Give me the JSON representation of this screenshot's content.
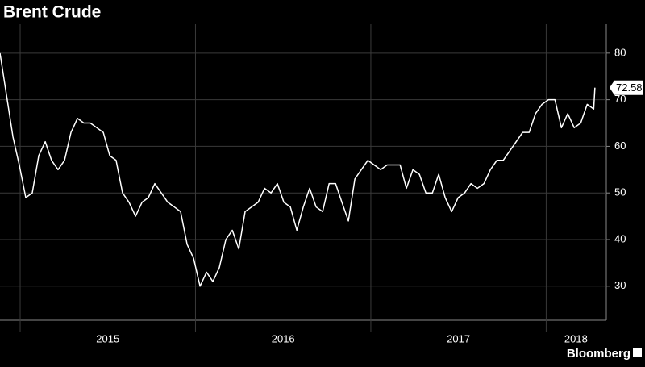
{
  "chart_data": {
    "type": "line",
    "title": "Brent Crude",
    "source": "Bloomberg",
    "xlim": [
      2014.885,
      2018.343
    ],
    "ylim": [
      22.7,
      86.2
    ],
    "yticks": [
      30,
      40,
      50,
      60,
      70,
      80
    ],
    "xticks": [
      {
        "value": 2015.5,
        "label": "2015"
      },
      {
        "value": 2016.5,
        "label": "2016"
      },
      {
        "value": 2017.5,
        "label": "2017"
      },
      {
        "value": 2018.17,
        "label": "2018"
      }
    ],
    "xdividers": [
      2015,
      2016,
      2017,
      2018
    ],
    "grid": true,
    "series": [
      {
        "name": "Brent Crude",
        "color": "#ffffff",
        "x": [
          2014.885,
          2014.922,
          2014.959,
          2014.995,
          2015.032,
          2015.069,
          2015.106,
          2015.143,
          2015.179,
          2015.216,
          2015.253,
          2015.29,
          2015.327,
          2015.363,
          2015.4,
          2015.437,
          2015.474,
          2015.511,
          2015.547,
          2015.584,
          2015.621,
          2015.658,
          2015.695,
          2015.731,
          2015.768,
          2015.805,
          2015.842,
          2015.879,
          2015.915,
          2015.952,
          2015.989,
          2016.026,
          2016.063,
          2016.099,
          2016.136,
          2016.173,
          2016.21,
          2016.247,
          2016.283,
          2016.32,
          2016.357,
          2016.394,
          2016.431,
          2016.467,
          2016.504,
          2016.541,
          2016.578,
          2016.615,
          2016.651,
          2016.688,
          2016.725,
          2016.762,
          2016.799,
          2016.835,
          2016.872,
          2016.909,
          2016.946,
          2016.983,
          2017.019,
          2017.056,
          2017.093,
          2017.13,
          2017.167,
          2017.203,
          2017.24,
          2017.277,
          2017.314,
          2017.351,
          2017.387,
          2017.424,
          2017.461,
          2017.498,
          2017.535,
          2017.571,
          2017.608,
          2017.645,
          2017.682,
          2017.719,
          2017.755,
          2017.792,
          2017.829,
          2017.866,
          2017.903,
          2017.939,
          2017.976,
          2018.013,
          2018.05,
          2018.087,
          2018.123,
          2018.16,
          2018.197,
          2018.234,
          2018.271,
          2018.278
        ],
        "values": [
          80,
          71,
          62,
          56,
          49,
          50,
          58,
          61,
          57,
          55,
          57,
          63,
          66,
          65,
          65,
          64,
          63,
          58,
          57,
          50,
          48,
          45,
          48,
          49,
          52,
          50,
          48,
          47,
          46,
          39,
          36,
          30,
          33,
          31,
          34,
          40,
          42,
          38,
          46,
          47,
          48,
          51,
          50,
          52,
          48,
          47,
          42,
          47,
          51,
          47,
          46,
          52,
          52,
          48,
          44,
          53,
          55,
          57,
          56,
          55,
          56,
          56,
          56,
          51,
          55,
          54,
          50,
          50,
          54,
          49,
          46,
          49,
          50,
          52,
          51,
          52,
          55,
          57,
          57,
          59,
          61,
          63,
          63,
          67,
          69,
          70,
          70,
          64,
          67,
          64,
          65,
          69,
          68,
          72.58
        ]
      }
    ]
  }
}
